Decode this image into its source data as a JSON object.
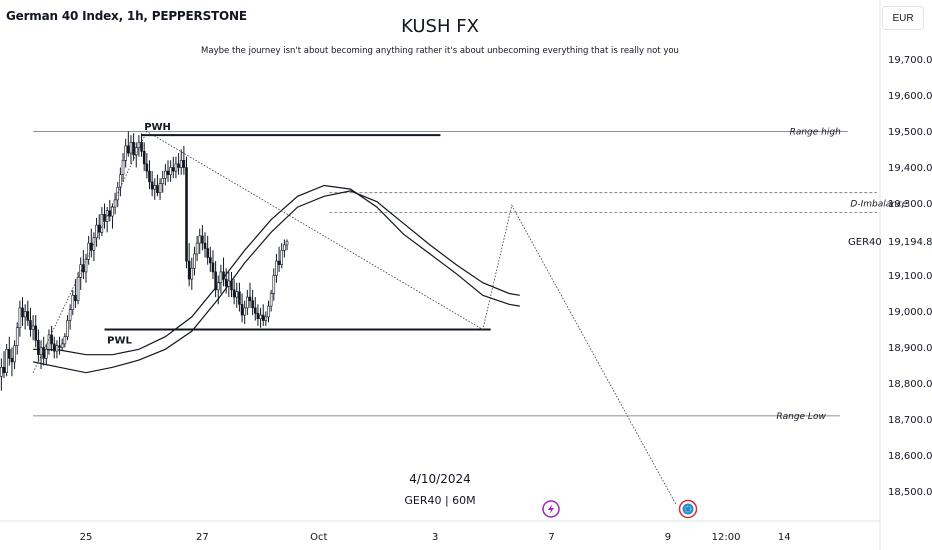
{
  "header": {
    "symbol_title": "German 40 Index, 1h, PEPPERSTONE",
    "brand": "KUSH FX",
    "tagline": "Maybe the journey isn't about becoming anything rather it's about unbecoming everything that is really not you",
    "currency": "EUR"
  },
  "watermark": {
    "date": "4/10/2024",
    "symbol": "GER40 | 60M"
  },
  "colors": {
    "background": "#ffffff",
    "candle": "#131722",
    "line": "#131722",
    "badge_purple": "#9c27b0",
    "badge_red": "#d32f2f",
    "badge_blue": "#1e88e5"
  },
  "icons": {
    "event_badge": "lightning-icon",
    "flag_badge": "eu-flag-icon"
  },
  "chart_data": {
    "type": "candlestick",
    "symbol": "GER40",
    "ylim": [
      18370,
      19840
    ],
    "y_ticks": [
      18500,
      18600,
      18700,
      18800,
      18900,
      19000,
      19100,
      19300,
      19400,
      19500,
      19600,
      19700
    ],
    "y_tick_labels": [
      "18,500.0",
      "18,600.0",
      "18,700.0",
      "18,800.0",
      "18,900.0",
      "19,000.0",
      "19,100.0",
      "19,300.0",
      "19,400.0",
      "19,500.0",
      "19,600.0",
      "19,700.0"
    ],
    "last_price": {
      "label": "GER40",
      "value": "19,194.8",
      "price": 19194.8
    },
    "x_ticks": [
      {
        "label": "25",
        "bar": 0
      },
      {
        "label": "27",
        "bar": 44
      },
      {
        "label": "Oct",
        "bar": 88
      },
      {
        "label": "3",
        "bar": 132
      },
      {
        "label": "7",
        "bar": 176
      },
      {
        "label": "9",
        "bar": 220
      },
      {
        "label": "12:00",
        "bar": 242
      },
      {
        "label": "14",
        "bar": 264
      }
    ],
    "x_range": [
      -20,
      299
    ],
    "levels": [
      {
        "name": "Range high",
        "price": 19500,
        "style": "thin",
        "x_from": -20,
        "x_to": 288,
        "label": "Range high",
        "label_bar": 266
      },
      {
        "name": "PWH",
        "price": 19490,
        "style": "thick",
        "x_from": 21,
        "x_to": 134,
        "label": "PWH",
        "label_bar": 22,
        "label_pos": "above"
      },
      {
        "name": "D-Imbalance top",
        "price": 19330,
        "style": "dashed",
        "x_from": 92,
        "x_to": 299
      },
      {
        "name": "D-Imbalance bottom",
        "price": 19275,
        "style": "dashed",
        "x_from": 92,
        "x_to": 299,
        "label": "D-Imbalance",
        "label_bar": 289
      },
      {
        "name": "PWL",
        "price": 18950,
        "style": "thick",
        "x_from": 7,
        "x_to": 153,
        "label": "PWL",
        "label_bar": 8,
        "label_pos": "below"
      },
      {
        "name": "Range Low",
        "price": 18710,
        "style": "thin",
        "x_from": -20,
        "x_to": 285,
        "label": "Range Low",
        "label_bar": 261
      }
    ],
    "projection_path": [
      [
        -20,
        18830
      ],
      [
        23,
        19500
      ],
      [
        150,
        18950
      ],
      [
        161,
        19295
      ],
      [
        223,
        18465
      ]
    ],
    "candles": [
      {
        "o": 18830,
        "h": 18860,
        "l": 18770,
        "c": 18820
      },
      {
        "o": 18820,
        "h": 18870,
        "l": 18780,
        "c": 18845
      },
      {
        "o": 18845,
        "h": 18890,
        "l": 18815,
        "c": 18830
      },
      {
        "o": 18830,
        "h": 18910,
        "l": 18820,
        "c": 18895
      },
      {
        "o": 18895,
        "h": 18930,
        "l": 18850,
        "c": 18870
      },
      {
        "o": 18870,
        "h": 18900,
        "l": 18820,
        "c": 18860
      },
      {
        "o": 18860,
        "h": 18920,
        "l": 18840,
        "c": 18905
      },
      {
        "o": 18905,
        "h": 18970,
        "l": 18880,
        "c": 18955
      },
      {
        "o": 18955,
        "h": 19030,
        "l": 18930,
        "c": 19010
      },
      {
        "o": 19010,
        "h": 19040,
        "l": 18960,
        "c": 18985
      },
      {
        "o": 18985,
        "h": 19020,
        "l": 18950,
        "c": 19000
      },
      {
        "o": 19000,
        "h": 19030,
        "l": 18960,
        "c": 18975
      },
      {
        "o": 18975,
        "h": 19010,
        "l": 18930,
        "c": 18950
      },
      {
        "o": 18950,
        "h": 18990,
        "l": 18920,
        "c": 18960
      },
      {
        "o": 18960,
        "h": 18990,
        "l": 18900,
        "c": 18920
      },
      {
        "o": 18920,
        "h": 18950,
        "l": 18860,
        "c": 18880
      },
      {
        "o": 18880,
        "h": 18920,
        "l": 18840,
        "c": 18900
      },
      {
        "o": 18900,
        "h": 18930,
        "l": 18850,
        "c": 18870
      },
      {
        "o": 18870,
        "h": 18910,
        "l": 18850,
        "c": 18895
      },
      {
        "o": 18895,
        "h": 18950,
        "l": 18880,
        "c": 18935
      },
      {
        "o": 18935,
        "h": 18960,
        "l": 18890,
        "c": 18910
      },
      {
        "o": 18910,
        "h": 18930,
        "l": 18870,
        "c": 18890
      },
      {
        "o": 18890,
        "h": 18920,
        "l": 18870,
        "c": 18905
      },
      {
        "o": 18905,
        "h": 18930,
        "l": 18880,
        "c": 18900
      },
      {
        "o": 18900,
        "h": 18925,
        "l": 18890,
        "c": 18910
      },
      {
        "o": 18910,
        "h": 18940,
        "l": 18900,
        "c": 18930
      },
      {
        "o": 18930,
        "h": 18990,
        "l": 18920,
        "c": 18975
      },
      {
        "o": 18975,
        "h": 19020,
        "l": 18950,
        "c": 19005
      },
      {
        "o": 19005,
        "h": 19060,
        "l": 18990,
        "c": 19045
      },
      {
        "o": 19045,
        "h": 19090,
        "l": 19010,
        "c": 19030
      },
      {
        "o": 19030,
        "h": 19110,
        "l": 19020,
        "c": 19095
      },
      {
        "o": 19095,
        "h": 19150,
        "l": 19060,
        "c": 19130
      },
      {
        "o": 19130,
        "h": 19170,
        "l": 19090,
        "c": 19110
      },
      {
        "o": 19110,
        "h": 19160,
        "l": 19080,
        "c": 19145
      },
      {
        "o": 19145,
        "h": 19210,
        "l": 19130,
        "c": 19190
      },
      {
        "o": 19190,
        "h": 19230,
        "l": 19150,
        "c": 19170
      },
      {
        "o": 19170,
        "h": 19220,
        "l": 19140,
        "c": 19205
      },
      {
        "o": 19205,
        "h": 19260,
        "l": 19180,
        "c": 19240
      },
      {
        "o": 19240,
        "h": 19270,
        "l": 19200,
        "c": 19220
      },
      {
        "o": 19220,
        "h": 19290,
        "l": 19210,
        "c": 19270
      },
      {
        "o": 19270,
        "h": 19300,
        "l": 19230,
        "c": 19250
      },
      {
        "o": 19250,
        "h": 19290,
        "l": 19220,
        "c": 19280
      },
      {
        "o": 19280,
        "h": 19310,
        "l": 19250,
        "c": 19265
      },
      {
        "o": 19265,
        "h": 19300,
        "l": 19230,
        "c": 19290
      },
      {
        "o": 19290,
        "h": 19330,
        "l": 19270,
        "c": 19310
      },
      {
        "o": 19310,
        "h": 19360,
        "l": 19290,
        "c": 19345
      },
      {
        "o": 19345,
        "h": 19400,
        "l": 19320,
        "c": 19380
      },
      {
        "o": 19380,
        "h": 19440,
        "l": 19360,
        "c": 19420
      },
      {
        "o": 19420,
        "h": 19480,
        "l": 19400,
        "c": 19460
      },
      {
        "o": 19460,
        "h": 19500,
        "l": 19430,
        "c": 19440
      },
      {
        "o": 19440,
        "h": 19490,
        "l": 19410,
        "c": 19470
      },
      {
        "o": 19470,
        "h": 19495,
        "l": 19420,
        "c": 19435
      },
      {
        "o": 19435,
        "h": 19470,
        "l": 19400,
        "c": 19455
      },
      {
        "o": 19455,
        "h": 19490,
        "l": 19430,
        "c": 19470
      },
      {
        "o": 19470,
        "h": 19495,
        "l": 19430,
        "c": 19445
      },
      {
        "o": 19445,
        "h": 19470,
        "l": 19390,
        "c": 19410
      },
      {
        "o": 19410,
        "h": 19440,
        "l": 19370,
        "c": 19390
      },
      {
        "o": 19390,
        "h": 19420,
        "l": 19340,
        "c": 19360
      },
      {
        "o": 19360,
        "h": 19390,
        "l": 19320,
        "c": 19340
      },
      {
        "o": 19340,
        "h": 19370,
        "l": 19310,
        "c": 19350
      },
      {
        "o": 19350,
        "h": 19380,
        "l": 19320,
        "c": 19330
      },
      {
        "o": 19330,
        "h": 19370,
        "l": 19310,
        "c": 19355
      },
      {
        "o": 19355,
        "h": 19390,
        "l": 19330,
        "c": 19370
      },
      {
        "o": 19370,
        "h": 19410,
        "l": 19350,
        "c": 19390
      },
      {
        "o": 19390,
        "h": 19420,
        "l": 19360,
        "c": 19380
      },
      {
        "o": 19380,
        "h": 19420,
        "l": 19360,
        "c": 19400
      },
      {
        "o": 19400,
        "h": 19430,
        "l": 19370,
        "c": 19390
      },
      {
        "o": 19390,
        "h": 19430,
        "l": 19370,
        "c": 19410
      },
      {
        "o": 19410,
        "h": 19440,
        "l": 19380,
        "c": 19400
      },
      {
        "o": 19400,
        "h": 19450,
        "l": 19380,
        "c": 19420
      },
      {
        "o": 19420,
        "h": 19460,
        "l": 19380,
        "c": 19400
      },
      {
        "o": 19400,
        "h": 19430,
        "l": 19120,
        "c": 19140
      },
      {
        "o": 19140,
        "h": 19190,
        "l": 19070,
        "c": 19090
      },
      {
        "o": 19090,
        "h": 19150,
        "l": 19060,
        "c": 19120
      },
      {
        "o": 19120,
        "h": 19180,
        "l": 19100,
        "c": 19160
      },
      {
        "o": 19160,
        "h": 19210,
        "l": 19140,
        "c": 19190
      },
      {
        "o": 19190,
        "h": 19230,
        "l": 19160,
        "c": 19210
      },
      {
        "o": 19210,
        "h": 19240,
        "l": 19170,
        "c": 19190
      },
      {
        "o": 19190,
        "h": 19220,
        "l": 19150,
        "c": 19175
      },
      {
        "o": 19175,
        "h": 19210,
        "l": 19130,
        "c": 19150
      },
      {
        "o": 19150,
        "h": 19180,
        "l": 19110,
        "c": 19135
      },
      {
        "o": 19135,
        "h": 19170,
        "l": 19090,
        "c": 19110
      },
      {
        "o": 19110,
        "h": 19140,
        "l": 19040,
        "c": 19060
      },
      {
        "o": 19060,
        "h": 19100,
        "l": 19020,
        "c": 19080
      },
      {
        "o": 19080,
        "h": 19130,
        "l": 19050,
        "c": 19110
      },
      {
        "o": 19110,
        "h": 19150,
        "l": 19070,
        "c": 19090
      },
      {
        "o": 19090,
        "h": 19120,
        "l": 19050,
        "c": 19070
      },
      {
        "o": 19070,
        "h": 19110,
        "l": 19040,
        "c": 19085
      },
      {
        "o": 19085,
        "h": 19110,
        "l": 19040,
        "c": 19060
      },
      {
        "o": 19060,
        "h": 19090,
        "l": 19020,
        "c": 19040
      },
      {
        "o": 19040,
        "h": 19080,
        "l": 19010,
        "c": 19055
      },
      {
        "o": 19055,
        "h": 19080,
        "l": 19000,
        "c": 19020
      },
      {
        "o": 19020,
        "h": 19050,
        "l": 18970,
        "c": 18990
      },
      {
        "o": 18990,
        "h": 19030,
        "l": 18965,
        "c": 19010
      },
      {
        "o": 19010,
        "h": 19060,
        "l": 18990,
        "c": 19040
      },
      {
        "o": 19040,
        "h": 19080,
        "l": 19010,
        "c": 19030
      },
      {
        "o": 19030,
        "h": 19060,
        "l": 18990,
        "c": 19010
      },
      {
        "o": 19010,
        "h": 19040,
        "l": 18975,
        "c": 18995
      },
      {
        "o": 18995,
        "h": 19020,
        "l": 18960,
        "c": 18980
      },
      {
        "o": 18980,
        "h": 19010,
        "l": 18955,
        "c": 18990
      },
      {
        "o": 18990,
        "h": 19020,
        "l": 18960,
        "c": 18975
      },
      {
        "o": 18975,
        "h": 19000,
        "l": 18960,
        "c": 18985
      },
      {
        "o": 18985,
        "h": 19030,
        "l": 18970,
        "c": 19015
      },
      {
        "o": 19015,
        "h": 19060,
        "l": 19000,
        "c": 19050
      },
      {
        "o": 19050,
        "h": 19120,
        "l": 19030,
        "c": 19100
      },
      {
        "o": 19100,
        "h": 19160,
        "l": 19080,
        "c": 19140
      },
      {
        "o": 19140,
        "h": 19180,
        "l": 19110,
        "c": 19130
      },
      {
        "o": 19130,
        "h": 19190,
        "l": 19120,
        "c": 19170
      },
      {
        "o": 19170,
        "h": 19200,
        "l": 19150,
        "c": 19185
      },
      {
        "o": 19185,
        "h": 19200,
        "l": 19170,
        "c": 19195
      }
    ],
    "moving_averages": [
      {
        "name": "MA1",
        "points": [
          [
            -20,
            18895
          ],
          [
            -10,
            18893
          ],
          [
            0,
            18880
          ],
          [
            10,
            18880
          ],
          [
            20,
            18895
          ],
          [
            30,
            18930
          ],
          [
            40,
            18985
          ],
          [
            50,
            19075
          ],
          [
            60,
            19170
          ],
          [
            70,
            19255
          ],
          [
            80,
            19320
          ],
          [
            90,
            19350
          ],
          [
            100,
            19340
          ],
          [
            110,
            19290
          ],
          [
            120,
            19215
          ],
          [
            130,
            19160
          ],
          [
            140,
            19105
          ],
          [
            150,
            19045
          ],
          [
            160,
            19020
          ],
          [
            164,
            19015
          ]
        ]
      },
      {
        "name": "MA2",
        "points": [
          [
            -20,
            18860
          ],
          [
            -10,
            18845
          ],
          [
            0,
            18830
          ],
          [
            10,
            18845
          ],
          [
            20,
            18865
          ],
          [
            30,
            18895
          ],
          [
            40,
            18945
          ],
          [
            50,
            19035
          ],
          [
            60,
            19135
          ],
          [
            70,
            19220
          ],
          [
            80,
            19290
          ],
          [
            90,
            19320
          ],
          [
            100,
            19335
          ],
          [
            110,
            19305
          ],
          [
            120,
            19245
          ],
          [
            130,
            19185
          ],
          [
            140,
            19130
          ],
          [
            150,
            19080
          ],
          [
            160,
            19050
          ],
          [
            164,
            19045
          ]
        ]
      }
    ]
  }
}
